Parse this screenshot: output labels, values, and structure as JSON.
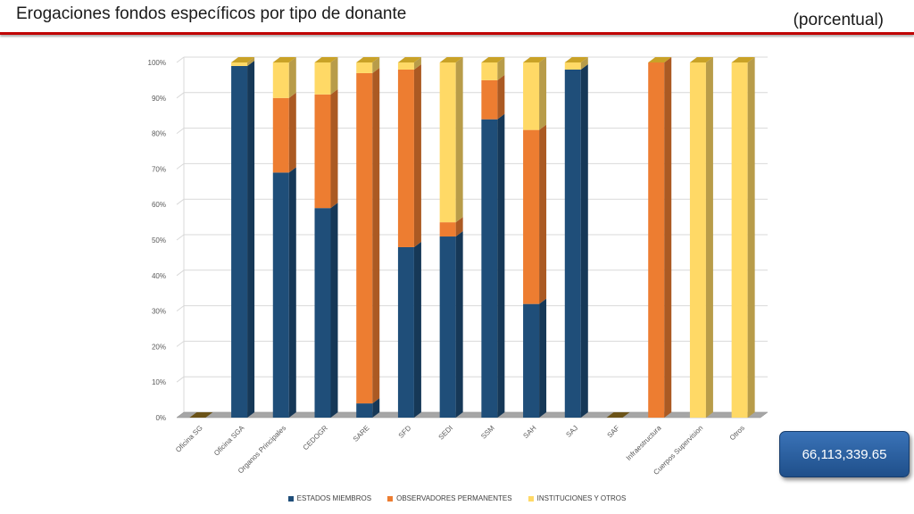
{
  "header": {
    "title": "Erogaciones fondos específicos por tipo de donante",
    "subtitle": "(porcentual)"
  },
  "total": {
    "value": "66,113,339.65"
  },
  "colors": {
    "estados": "#1f4e79",
    "observadores": "#ed7d31",
    "instituciones": "#ffd966",
    "accent_rule": "#c00000"
  },
  "chart_data": {
    "type": "bar",
    "stacked": true,
    "percent": true,
    "title": "Erogaciones fondos específicos por tipo de donante",
    "categories": [
      "Oficina SG",
      "Oficina SGA",
      "Organos Principales",
      "CEDOGR",
      "SARE",
      "SFD",
      "SEDI",
      "SSM",
      "SAH",
      "SAJ",
      "SAF",
      "Infraestructura",
      "Cuerpos Supervision",
      "Otros"
    ],
    "series": [
      {
        "name": "ESTADOS MIEMBROS",
        "values": [
          0,
          99,
          69,
          59,
          4,
          48,
          51,
          84,
          32,
          98,
          0,
          0,
          0,
          0
        ]
      },
      {
        "name": "OBSERVADORES PERMANENTES",
        "values": [
          0,
          0,
          21,
          32,
          93,
          50,
          4,
          11,
          49,
          0,
          0,
          100,
          0,
          0
        ]
      },
      {
        "name": "INSTITUCIONES Y OTROS",
        "values": [
          0,
          1,
          10,
          9,
          3,
          2,
          45,
          5,
          19,
          2,
          0,
          0,
          100,
          100
        ]
      }
    ],
    "yticks": [
      "0%",
      "10%",
      "20%",
      "30%",
      "40%",
      "50%",
      "60%",
      "70%",
      "80%",
      "90%",
      "100%"
    ],
    "ylim": [
      0,
      100
    ],
    "grid": true,
    "legend_position": "bottom"
  }
}
